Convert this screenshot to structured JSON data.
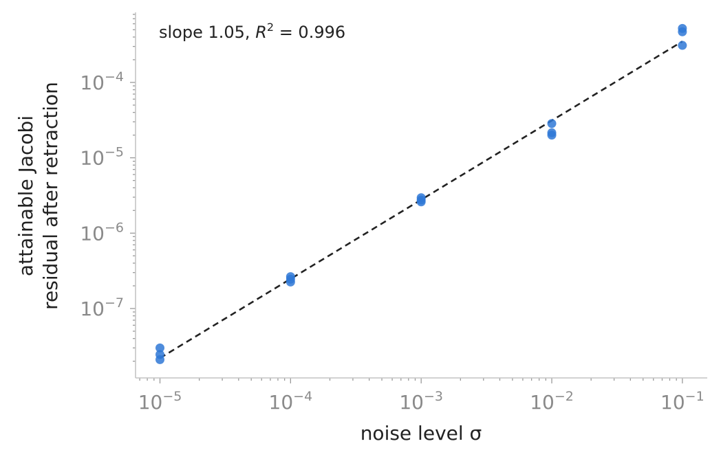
{
  "chart_data": {
    "type": "scatter",
    "xscale": "log",
    "yscale": "log",
    "xlabel": "noise level σ",
    "ylabel_lines": [
      "attainable Jacobi",
      "residual after retraction"
    ],
    "annotation": {
      "text": "slope 1.05,  R² = 0.996",
      "prefix": "slope 1.05,  ",
      "r": "R",
      "sup": "2",
      "suffix": " = 0.996"
    },
    "xlim": [
      6.5e-06,
      0.155
    ],
    "ylim": [
      1.2e-08,
      0.00085
    ],
    "x_ticks": [
      {
        "value": 1e-05,
        "base": "10",
        "exp": "−5"
      },
      {
        "value": 0.0001,
        "base": "10",
        "exp": "−4"
      },
      {
        "value": 0.001,
        "base": "10",
        "exp": "−3"
      },
      {
        "value": 0.01,
        "base": "10",
        "exp": "−2"
      },
      {
        "value": 0.1,
        "base": "10",
        "exp": "−1"
      }
    ],
    "y_ticks": [
      {
        "value": 1e-07,
        "base": "10",
        "exp": "−7"
      },
      {
        "value": 1e-06,
        "base": "10",
        "exp": "−6"
      },
      {
        "value": 1e-05,
        "base": "10",
        "exp": "−5"
      },
      {
        "value": 0.0001,
        "base": "10",
        "exp": "−4"
      }
    ],
    "points": [
      {
        "x": 1e-05,
        "y": 3e-08
      },
      {
        "x": 1e-05,
        "y": 2.45e-08
      },
      {
        "x": 1e-05,
        "y": 2.1e-08
      },
      {
        "x": 0.0001,
        "y": 2.65e-07
      },
      {
        "x": 0.0001,
        "y": 2.45e-07
      },
      {
        "x": 0.0001,
        "y": 2.25e-07
      },
      {
        "x": 0.001,
        "y": 2.95e-06
      },
      {
        "x": 0.001,
        "y": 2.75e-06
      },
      {
        "x": 0.001,
        "y": 2.6e-06
      },
      {
        "x": 0.01,
        "y": 2.85e-05
      },
      {
        "x": 0.01,
        "y": 2.15e-05
      },
      {
        "x": 0.01,
        "y": 2e-05
      },
      {
        "x": 0.1,
        "y": 0.00052
      },
      {
        "x": 0.1,
        "y": 0.00047
      },
      {
        "x": 0.1,
        "y": 0.00031
      }
    ],
    "fit_line": {
      "x": [
        1e-05,
        0.1
      ],
      "y": [
        2.2e-08,
        0.00035
      ]
    },
    "colors": {
      "points": "#2f78d6",
      "fit": "#222222"
    }
  }
}
